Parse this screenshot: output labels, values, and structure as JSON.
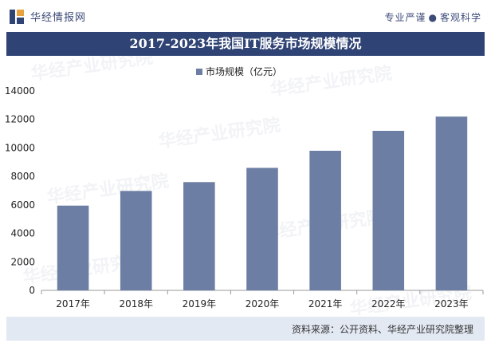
{
  "header": {
    "logo_text": "华经情报网",
    "slogan_left": "专业严谨",
    "slogan_right": "客观科学"
  },
  "footer": {
    "source": "资料来源：公开资料、华经产业研究院整理"
  },
  "watermark": {
    "text": "华经产业研究院"
  },
  "colors": {
    "bar": "#6c7ea3",
    "title_bg": "#2f4374",
    "footer_bg": "#e3e9f3"
  },
  "chart_data": {
    "type": "bar",
    "title": "2017-2023年我国IT服务市场规模情况",
    "categories": [
      "2017年",
      "2018年",
      "2019年",
      "2020年",
      "2021年",
      "2022年",
      "2023年"
    ],
    "series": [
      {
        "name": "市场规模（亿元）",
        "values": [
          5950,
          6980,
          7600,
          8600,
          9800,
          11200,
          12200
        ]
      }
    ],
    "ylim": [
      0,
      14000
    ],
    "yticks": [
      0,
      2000,
      4000,
      6000,
      8000,
      10000,
      12000,
      14000
    ],
    "legend": "top-center",
    "grid": false
  }
}
